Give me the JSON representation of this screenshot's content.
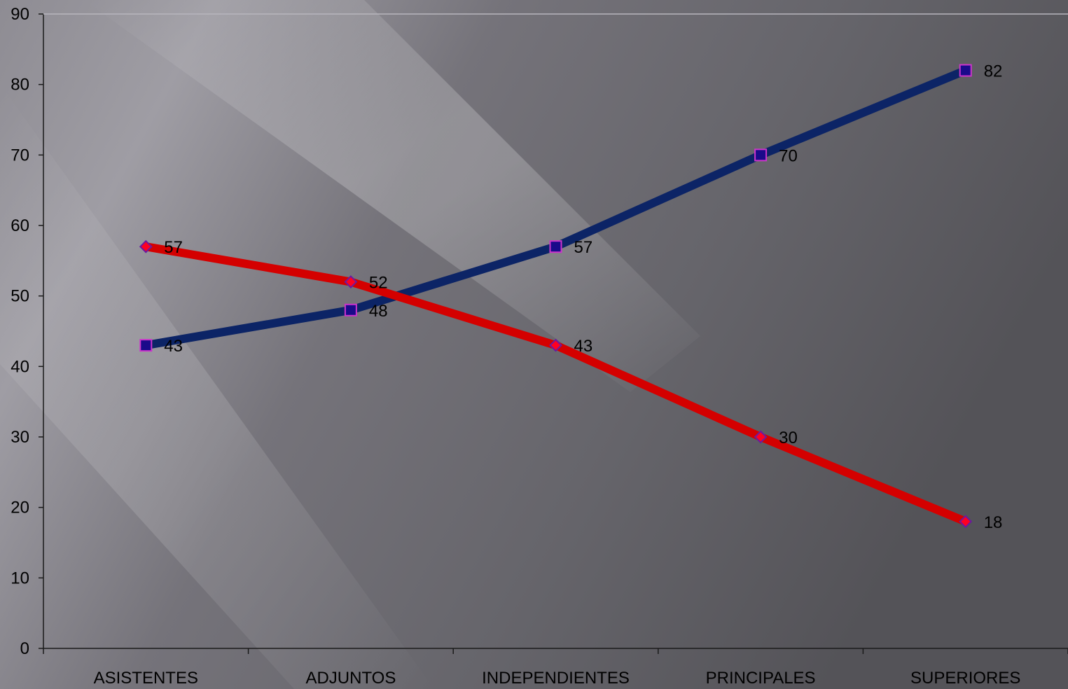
{
  "chart_data": {
    "type": "line",
    "categories": [
      "ASISTENTES",
      "ADJUNTOS",
      "INDEPENDIENTES",
      "PRINCIPALES",
      "SUPERIORES"
    ],
    "series": [
      {
        "values": [
          43,
          48,
          57,
          70,
          82
        ],
        "color": "#0c2466",
        "marker": "square",
        "marker_color": "#1a0a8a",
        "marker_edge": "#cc33cc"
      },
      {
        "values": [
          57,
          52,
          43,
          30,
          18
        ],
        "color": "#d40000",
        "marker": "diamond",
        "marker_color": "#ff0022",
        "marker_edge": "#6a1aa0"
      }
    ],
    "ylim": [
      0,
      90
    ],
    "yticks": [
      0,
      10,
      20,
      30,
      40,
      50,
      60,
      70,
      80,
      90
    ],
    "ytick_labels": [
      "0",
      "10",
      "20",
      "30",
      "40",
      "50",
      "60",
      "70",
      "80",
      "90"
    ],
    "data_labels": true,
    "grid": false,
    "legend": "none"
  }
}
